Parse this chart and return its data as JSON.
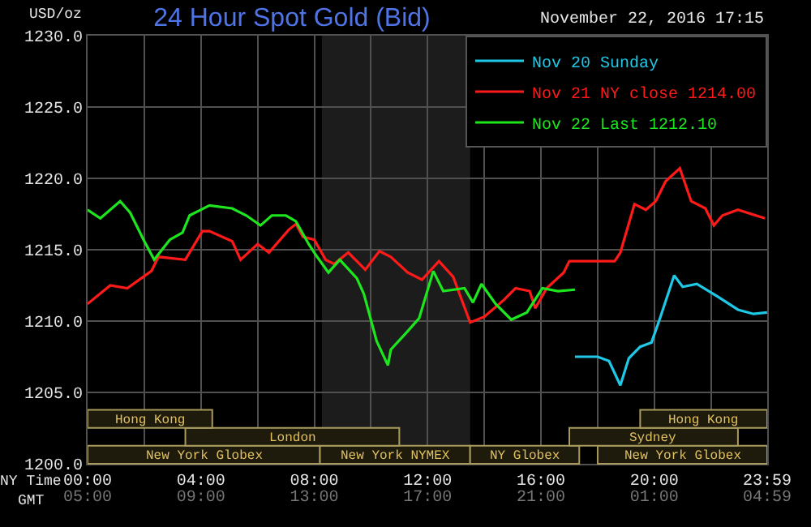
{
  "chart_data": {
    "type": "line",
    "title": "24 Hour Spot Gold (Bid)",
    "subtitle": "November 22, 2016 17:15",
    "ylabel": "USD/oz",
    "xlabel": "NY Time",
    "x2label": "GMT",
    "xlim": [
      0,
      23.983
    ],
    "xticks": [
      {
        "value": 0,
        "label": "00:00"
      },
      {
        "value": 2,
        "label": null
      },
      {
        "value": 4,
        "label": "04:00"
      },
      {
        "value": 6,
        "label": null
      },
      {
        "value": 8,
        "label": "08:00"
      },
      {
        "value": 10,
        "label": null
      },
      {
        "value": 12,
        "label": "12:00"
      },
      {
        "value": 14,
        "label": null
      },
      {
        "value": 16,
        "label": "16:00"
      },
      {
        "value": 18,
        "label": null
      },
      {
        "value": 20,
        "label": "20:00"
      },
      {
        "value": 22,
        "label": null
      },
      {
        "value": 23.983,
        "label": "23:59"
      }
    ],
    "x2lim": [
      "2016-11-22T05:00",
      "2016-11-23T04:59"
    ],
    "x2ticks": [
      {
        "value": "2016-11-22T05:00",
        "label": "05:00"
      },
      {
        "value": "2016-11-22T09:00",
        "label": "09:00"
      },
      {
        "value": "2016-11-22T13:00",
        "label": "13:00"
      },
      {
        "value": "2016-11-22T17:00",
        "label": "17:00"
      },
      {
        "value": "2016-11-22T21:00",
        "label": "21:00"
      },
      {
        "value": "2016-11-23T01:00",
        "label": "01:00"
      },
      {
        "value": "2016-11-23T04:59",
        "label": "04:59"
      }
    ],
    "ylim": [
      1200,
      1230
    ],
    "yticks": [
      {
        "value": 1200,
        "label": "1200.0"
      },
      {
        "value": 1205,
        "label": "1205.0"
      },
      {
        "value": 1210,
        "label": "1210.0"
      },
      {
        "value": 1215,
        "label": "1215.0"
      },
      {
        "value": 1220,
        "label": "1220.0"
      },
      {
        "value": 1225,
        "label": "1225.0"
      },
      {
        "value": 1230,
        "label": "1230.0"
      }
    ],
    "grid": true,
    "legend": "top right",
    "marker": "none",
    "line_style": "solid",
    "bands": [
      {
        "axis": "x",
        "from": 8.27,
        "to": 13.5,
        "color": "#1c1c1c"
      },
      {
        "axis": "x",
        "from": 0,
        "to": 8.2,
        "label": "New York Globex"
      },
      {
        "axis": "x",
        "from": 8.2,
        "to": 13.5,
        "label": "New York NYMEX"
      },
      {
        "axis": "x",
        "from": 13.5,
        "to": 17.35,
        "label": "NY Globex"
      },
      {
        "axis": "x",
        "from": 18.0,
        "to": 23.983,
        "label": "New York Globex"
      },
      {
        "axis": "x",
        "from": 3.45,
        "to": 11.0,
        "label": "London"
      },
      {
        "axis": "x",
        "from": 17.0,
        "to": 22.95,
        "label": "Sydney"
      },
      {
        "axis": "x",
        "from": 0,
        "to": 4.4,
        "label": "Hong Kong"
      },
      {
        "axis": "x",
        "from": 19.5,
        "to": 23.983,
        "label": "Hong Kong"
      }
    ],
    "series": [
      {
        "name": "Nov 20 Sunday",
        "color": "#1ec8e6",
        "x": [
          17.2,
          18.0,
          18.4,
          18.8,
          19.1,
          19.5,
          19.9,
          20.2,
          20.7,
          21.0,
          21.5,
          22.25,
          22.95,
          23.5,
          23.98
        ],
        "values": [
          1207.5,
          1207.5,
          1207.2,
          1205.5,
          1207.4,
          1208.2,
          1208.5,
          1210.2,
          1213.2,
          1212.4,
          1212.6,
          1211.7,
          1210.8,
          1210.5,
          1210.6
        ]
      },
      {
        "name": "Nov 21 NY close 1214.00",
        "color": "#ff1a1a",
        "x": [
          0,
          0.8,
          1.4,
          2.25,
          2.5,
          3.45,
          4.05,
          4.3,
          5.1,
          5.4,
          6.0,
          6.4,
          7.1,
          7.35,
          7.6,
          8.0,
          8.4,
          8.7,
          9.2,
          9.8,
          10.3,
          10.7,
          11.3,
          11.8,
          12.4,
          12.9,
          13.5,
          14.0,
          14.7,
          15.1,
          15.6,
          15.8,
          16.2,
          16.8,
          17.0,
          18.6,
          18.8,
          19.3,
          19.7,
          20.05,
          20.4,
          20.9,
          21.3,
          21.8,
          22.1,
          22.4,
          22.95,
          23.9
        ],
        "values": [
          1211.2,
          1212.5,
          1212.3,
          1213.5,
          1214.5,
          1214.3,
          1216.3,
          1216.3,
          1215.6,
          1214.3,
          1215.4,
          1214.8,
          1216.4,
          1216.8,
          1215.9,
          1215.7,
          1214.3,
          1214.0,
          1214.8,
          1213.6,
          1214.9,
          1214.5,
          1213.4,
          1212.9,
          1214.2,
          1213.1,
          1209.9,
          1210.3,
          1211.5,
          1212.3,
          1212.1,
          1210.9,
          1212.3,
          1213.4,
          1214.2,
          1214.2,
          1214.8,
          1218.2,
          1217.8,
          1218.4,
          1219.8,
          1220.7,
          1218.4,
          1217.9,
          1216.7,
          1217.4,
          1217.8,
          1217.2
        ]
      },
      {
        "name": "Nov 22 Last 1212.10",
        "color": "#1ee61e",
        "x": [
          0,
          0.45,
          1.15,
          1.5,
          2.0,
          2.35,
          2.9,
          3.35,
          3.6,
          4.3,
          5.1,
          5.6,
          6.1,
          6.5,
          7.0,
          7.35,
          7.8,
          8.1,
          8.5,
          8.9,
          9.5,
          9.75,
          10.2,
          10.6,
          10.7,
          11.3,
          11.7,
          12.2,
          12.55,
          13.3,
          13.6,
          13.9,
          14.4,
          14.95,
          15.5,
          16.05,
          16.6,
          17.2
        ],
        "values": [
          1217.8,
          1217.2,
          1218.4,
          1217.6,
          1215.6,
          1214.3,
          1215.7,
          1216.2,
          1217.4,
          1218.1,
          1217.9,
          1217.4,
          1216.7,
          1217.4,
          1217.4,
          1217.0,
          1215.4,
          1214.5,
          1213.4,
          1214.3,
          1213.0,
          1211.9,
          1208.6,
          1206.9,
          1208.0,
          1209.3,
          1210.2,
          1213.5,
          1212.1,
          1212.3,
          1211.3,
          1212.6,
          1211.2,
          1210.1,
          1210.6,
          1212.3,
          1212.1,
          1212.2
        ]
      }
    ]
  }
}
